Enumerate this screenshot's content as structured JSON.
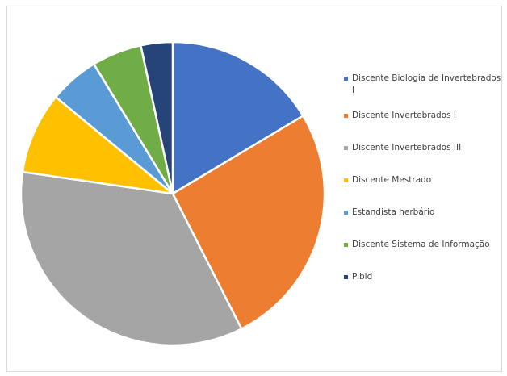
{
  "chart_data": {
    "type": "pie",
    "title": "",
    "legend_position": "right",
    "series": [
      {
        "name": "Discente Biologia de Invertebrados I",
        "value": 17,
        "color": "#4472C4"
      },
      {
        "name": "Discente Invertebrados I",
        "value": 27,
        "color": "#ED7D31"
      },
      {
        "name": "Discente Invertebrados III",
        "value": 36,
        "color": "#A5A5A5"
      },
      {
        "name": "Discente Mestrado",
        "value": 9,
        "color": "#FFC000"
      },
      {
        "name": "Estandista herbário",
        "value": 5.5,
        "color": "#5B9BD5"
      },
      {
        "name": "Discente Sistema de Informação",
        "value": 5.5,
        "color": "#70AD47"
      },
      {
        "name": "Pibid",
        "value": 3.5,
        "color": "#264478"
      }
    ]
  },
  "legend": {
    "items": [
      {
        "label": "Discente Biologia de Invertebrados I",
        "color": "#4472C4"
      },
      {
        "label": "Discente Invertebrados I",
        "color": "#ED7D31"
      },
      {
        "label": "Discente Invertebrados III",
        "color": "#A5A5A5"
      },
      {
        "label": "Discente Mestrado",
        "color": "#FFC000"
      },
      {
        "label": "Estandista herbário",
        "color": "#5B9BD5"
      },
      {
        "label": "Discente Sistema de Informação",
        "color": "#70AD47"
      },
      {
        "label": "Pibid",
        "color": "#264478"
      }
    ]
  }
}
